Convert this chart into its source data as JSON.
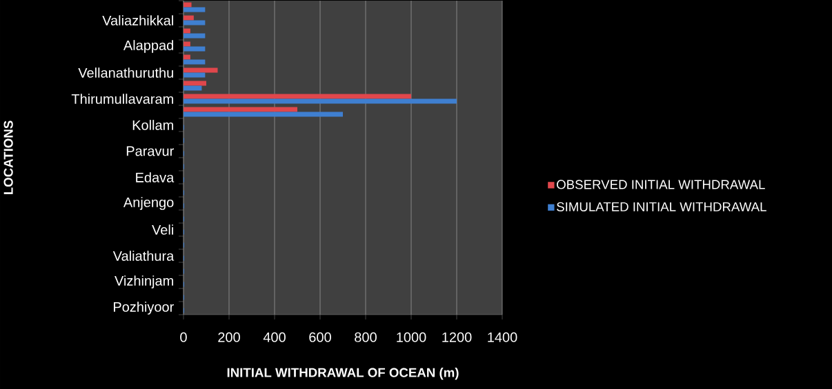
{
  "chart_data": {
    "type": "bar",
    "orientation": "horizontal",
    "xlabel": "INITIAL WITHDRAWAL OF OCEAN (m)",
    "ylabel": "LOCATIONS",
    "categories": [
      null,
      "Valiazhikkal",
      null,
      "Alappad",
      null,
      "Vellanathuruthu",
      null,
      "Thirumullavaram",
      null,
      "Kollam",
      null,
      "Paravur",
      null,
      "Edava",
      null,
      "Anjengo",
      null,
      "Veli",
      null,
      "Valiathura",
      null,
      "Vizhinjam",
      null,
      "Pozhiyoor"
    ],
    "series": [
      {
        "name": "OBSERVED INITIAL WITHDRAWAL",
        "color": "#e0474c",
        "values": [
          35,
          45,
          30,
          30,
          30,
          150,
          100,
          1000,
          500,
          0,
          0,
          0,
          0,
          0,
          0,
          0,
          0,
          0,
          0,
          0,
          0,
          0,
          0,
          0
        ]
      },
      {
        "name": "SIMULATED INITIAL WITHDRAWAL",
        "color": "#3f7fd0",
        "values": [
          95,
          95,
          95,
          95,
          95,
          95,
          80,
          1200,
          700,
          3,
          3,
          3,
          3,
          3,
          3,
          3,
          3,
          3,
          3,
          3,
          3,
          3,
          3,
          3
        ]
      }
    ],
    "xlim": [
      0,
      1400
    ],
    "xticks": [
      0,
      200,
      400,
      600,
      800,
      1000,
      1200,
      1400
    ],
    "grid": "x",
    "legend": "right"
  }
}
